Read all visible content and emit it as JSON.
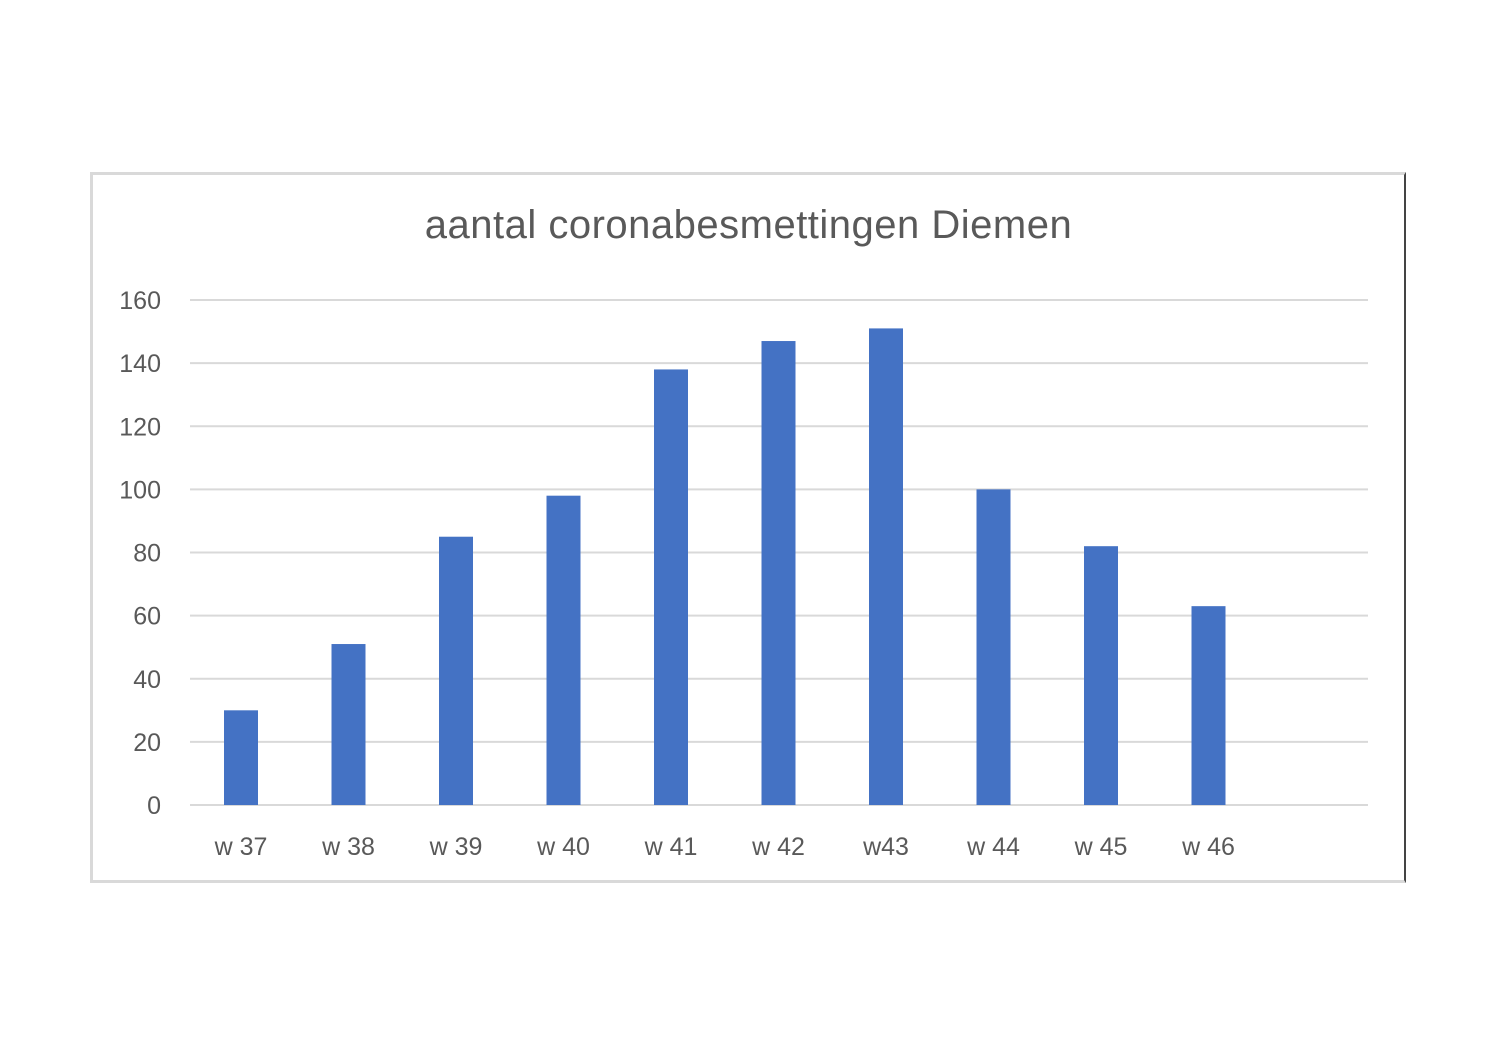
{
  "chart_data": {
    "type": "bar",
    "title": "aantal coronabesmettingen Diemen",
    "xlabel": "",
    "ylabel": "",
    "categories": [
      "w 37",
      "w 38",
      "w 39",
      "w 40",
      "w 41",
      "w 42",
      "w43",
      "w 44",
      "w 45",
      "w 46"
    ],
    "values": [
      30,
      51,
      85,
      98,
      138,
      147,
      151,
      100,
      82,
      63
    ],
    "ylim": [
      0,
      160
    ],
    "yticks": [
      0,
      20,
      40,
      60,
      80,
      100,
      120,
      140,
      160
    ],
    "grid": true,
    "legend": "none",
    "bar_color": "#4472c4",
    "grid_color": "#d9d9d9",
    "text_color": "#595959"
  }
}
